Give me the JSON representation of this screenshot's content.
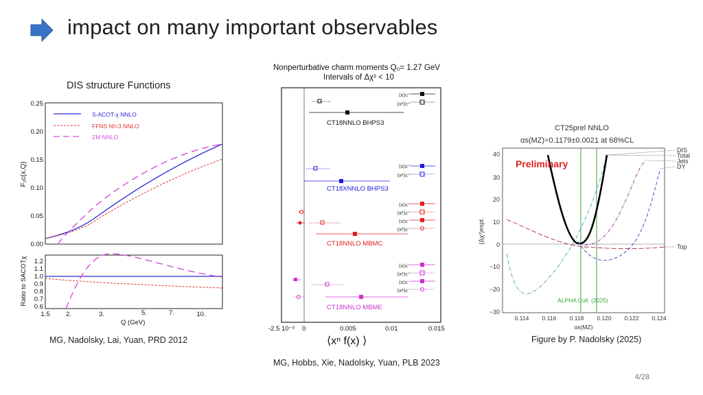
{
  "slide": {
    "title": "impact on many important observables",
    "page": "4/28",
    "accent": "#3a73c6"
  },
  "left_panel": {
    "heading": "DIS structure Functions",
    "citation": "MG, Nadolsky, Lai, Yuan, PRD 2012",
    "legend": [
      "S-ACOT-χ NNLO",
      "FFNS Nf=3 NNLO",
      "ZM NNLO"
    ],
    "legend_colors": [
      "#2a2ad8",
      "#e03030",
      "#d84bd8"
    ],
    "top_ylabel": "F₂c(x,Q)",
    "top_yticks": [
      "0.25",
      "0.20",
      "0.15",
      "0.10",
      "0.05",
      "0.00"
    ],
    "bottom_ylabel": "Ratio to SACOTχ",
    "bottom_yticks": [
      "1.2",
      "1.1",
      "1.0",
      "0.9",
      "0.8",
      "0.7",
      "0.6"
    ],
    "xticks": [
      "1.5",
      "2.",
      "3.",
      "5.",
      "7.",
      "10."
    ],
    "xlabel": "Q (GeV)"
  },
  "middle_panel": {
    "title_line1": "Nonperturbative charm moments Q₀= 1.27 GeV",
    "title_line2": "Intervals of Δχ² < 10",
    "group_labels": [
      "CT18NNLO BHPS3",
      "CT18XNNLO BHPS3",
      "CT18NNLO MBMC",
      "CT18NNLO MBME"
    ],
    "group_colors": [
      "#111111",
      "#1c1ce0",
      "#e02020",
      "#d030d0"
    ],
    "row_labels": [
      "⟨x⟩c⁺",
      "⟨x²⟩c⁺",
      "⟨x⟩c⁻",
      "⟨x²⟩c⁻"
    ],
    "xticks": [
      "-2.5 10⁻³",
      "0",
      "0.005",
      "0.01",
      "0.015"
    ],
    "xlabel": "⟨xⁿ  f(x) ⟩",
    "citation": "MG, Hobbs, Xie, Nadolsky, Yuan, PLB 2023"
  },
  "right_panel": {
    "title": "CT25prel NNLO",
    "subtitle": "αs(MZ)=0.1179±0.0021 at 68%CL",
    "stamp": "Preliminary",
    "stamp_color": "#e02020",
    "ylabel": "(Δχ²)expt.",
    "yticks": [
      "40",
      "30",
      "20",
      "10",
      "0",
      "−10",
      "−20",
      "−30"
    ],
    "xticks": [
      "0.114",
      "0.116",
      "0.118",
      "0.120",
      "0.122",
      "0.124"
    ],
    "xlabel": "αs(MZ)",
    "curve_labels": [
      "DIS",
      "Total",
      "Jets",
      "DY",
      "Top"
    ],
    "band_label": "ALPHA Coll. (2025)",
    "band_color": "#33a833",
    "citation": "Figure by P. Nadolsky (2025)"
  }
}
